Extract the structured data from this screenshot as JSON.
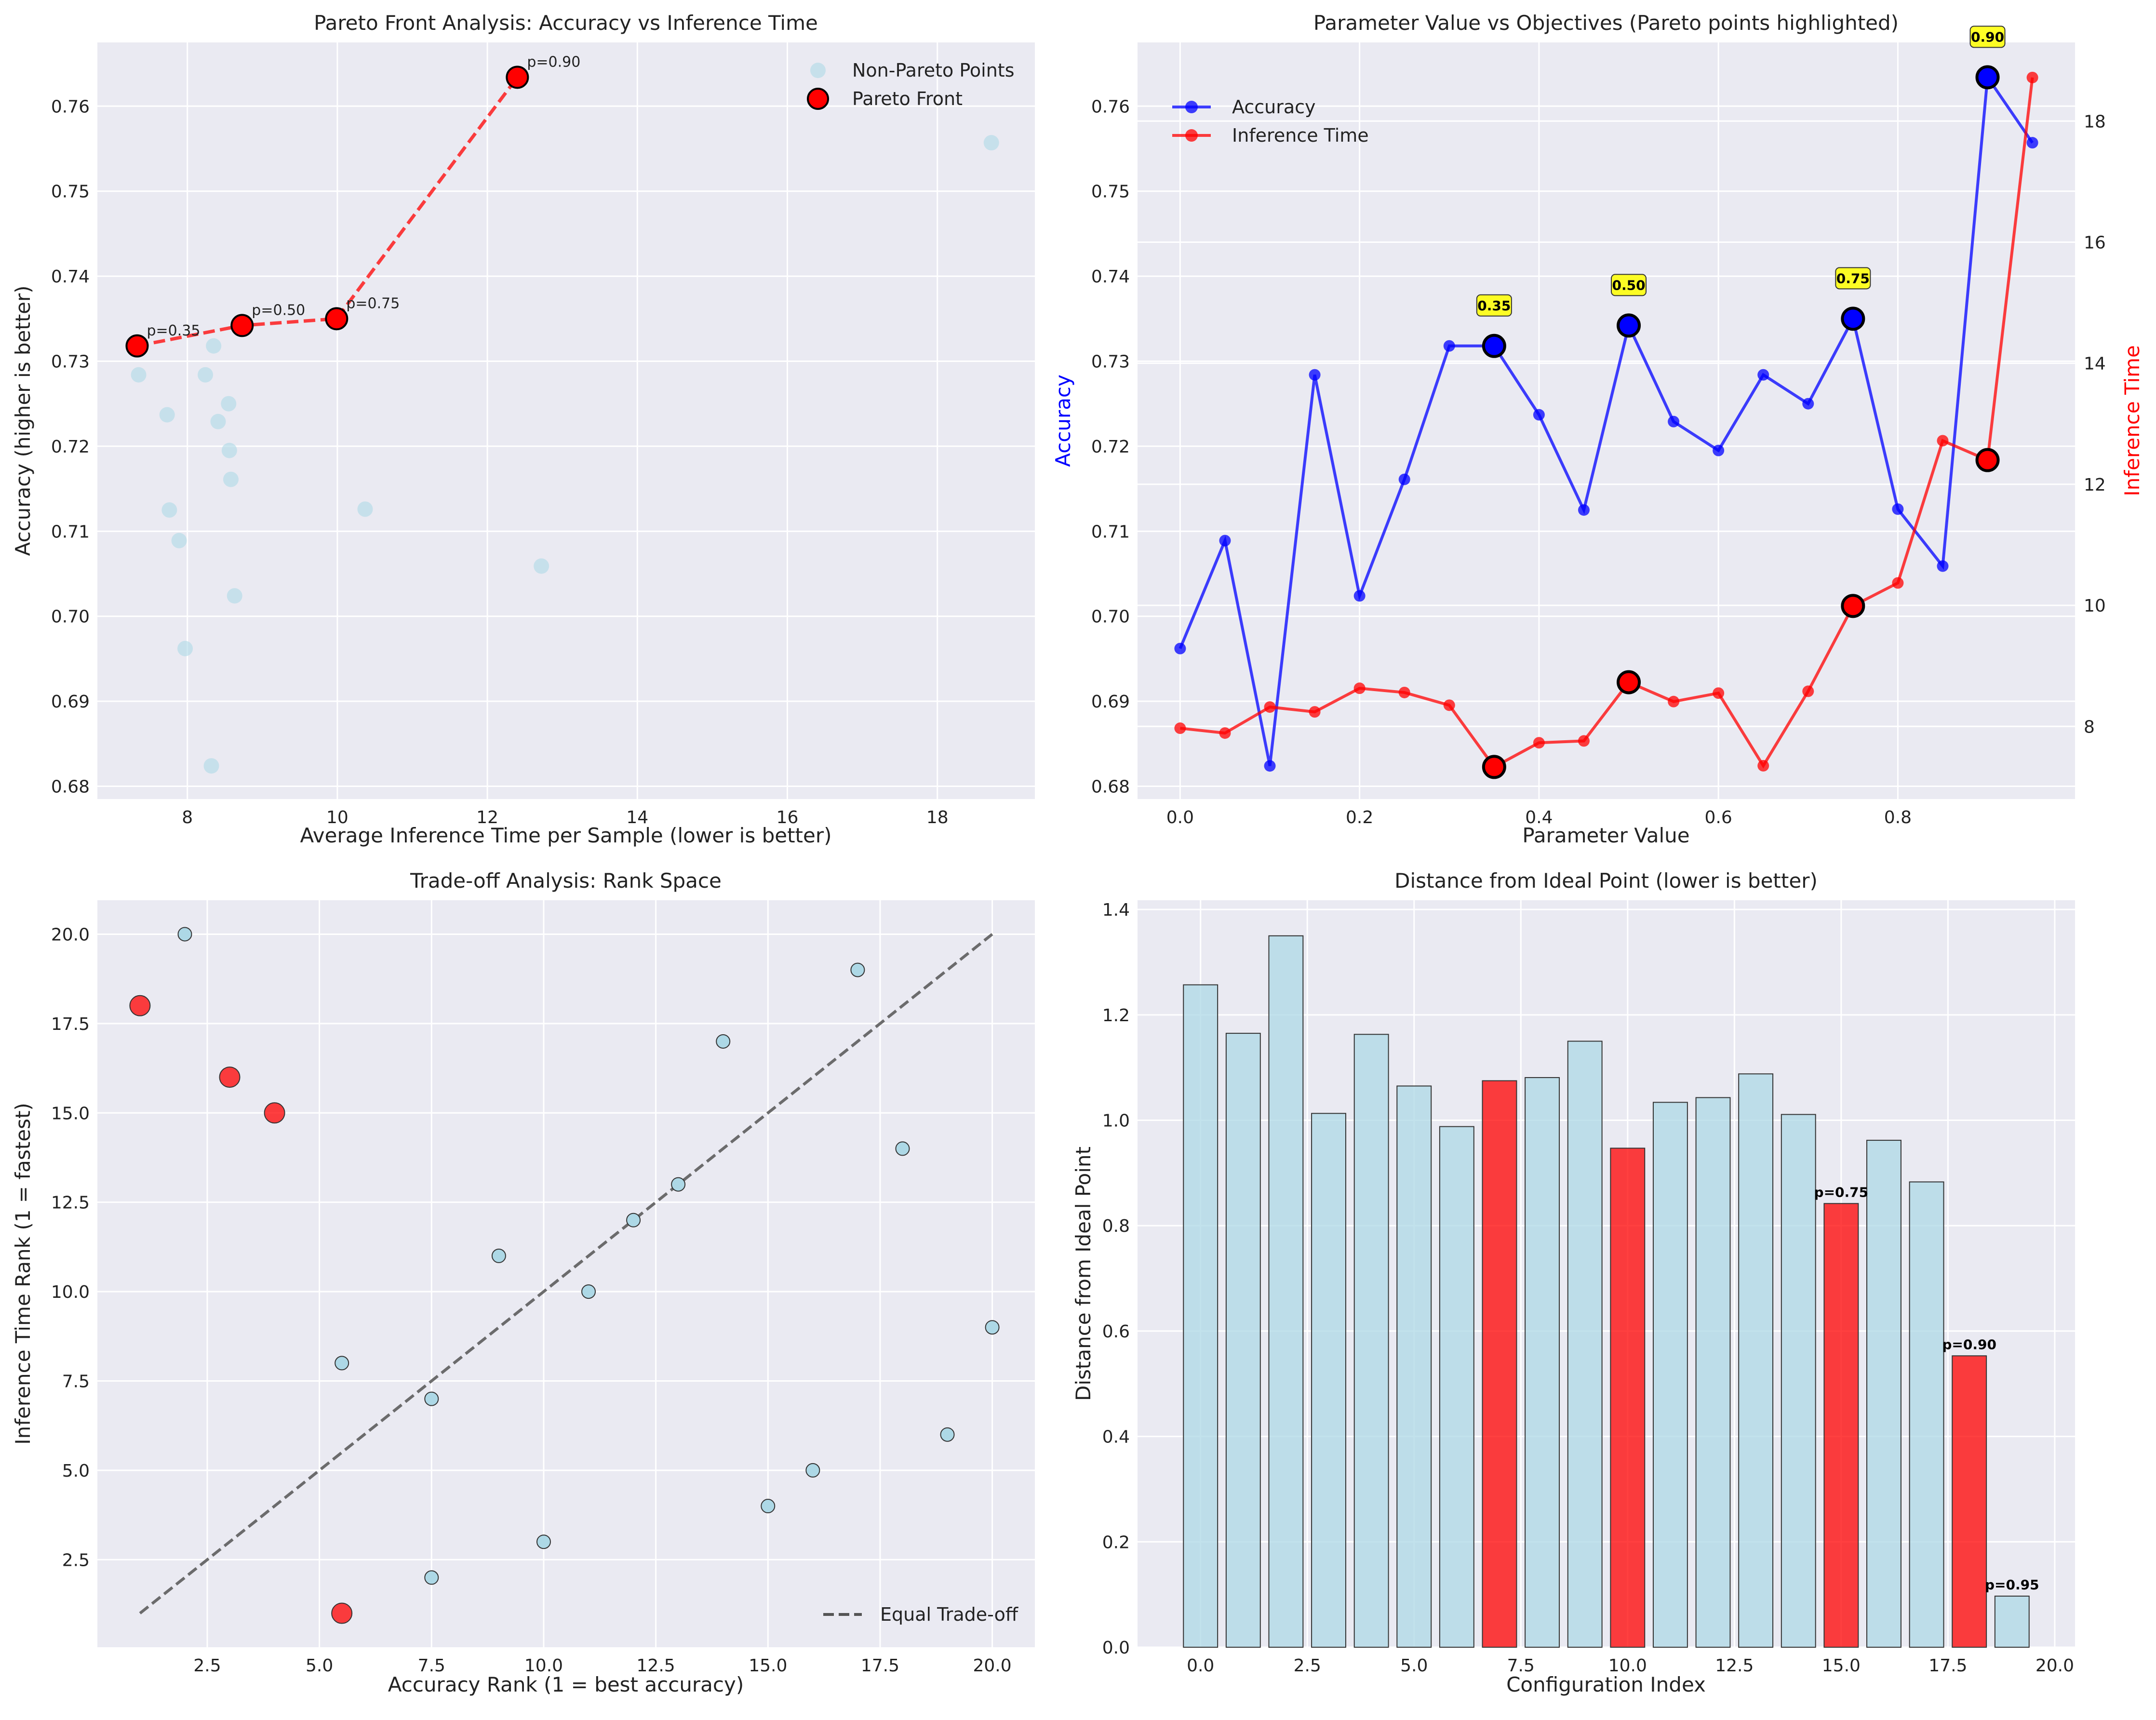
{
  "chart_data": [
    {
      "type": "scatter",
      "title": "Pareto Front Analysis: Accuracy vs Inference Time",
      "xlabel": "Average Inference Time per Sample (lower is better)",
      "ylabel": "Accuracy (higher is better)",
      "xlim": [
        6.8,
        19.3
      ],
      "ylim": [
        0.6785,
        0.7675
      ],
      "xticks": [
        8,
        10,
        12,
        14,
        16,
        18
      ],
      "yticks": [
        0.68,
        0.69,
        0.7,
        0.71,
        0.72,
        0.73,
        0.74,
        0.75,
        0.76
      ],
      "ytick_decimals": 2,
      "grid": true,
      "legend_position": "top-right",
      "series": [
        {
          "name": "Non-Pareto Points",
          "color": "#add8e6",
          "points": [
            [
              7.35,
              0.7284
            ],
            [
              7.73,
              0.7237
            ],
            [
              7.76,
              0.7125
            ],
            [
              7.89,
              0.7089
            ],
            [
              7.97,
              0.6962
            ],
            [
              8.24,
              0.7284
            ],
            [
              8.32,
              0.6824
            ],
            [
              8.35,
              0.7318
            ],
            [
              8.41,
              0.7229
            ],
            [
              8.55,
              0.725
            ],
            [
              8.56,
              0.7195
            ],
            [
              8.58,
              0.7161
            ],
            [
              8.63,
              0.7024
            ],
            [
              10.37,
              0.7126
            ],
            [
              12.72,
              0.7059
            ],
            [
              18.72,
              0.7557
            ]
          ]
        },
        {
          "name": "Pareto Front",
          "color": "#ff0000",
          "points": [
            [
              7.33,
              0.7318
            ],
            [
              8.73,
              0.7342
            ],
            [
              9.99,
              0.735
            ],
            [
              12.4,
              0.7634
            ]
          ],
          "labels": [
            "p=0.35",
            "p=0.50",
            "p=0.75",
            "p=0.90"
          ]
        }
      ]
    },
    {
      "type": "line",
      "title": "Parameter Value vs Objectives (Pareto points highlighted)",
      "xlabel": "Parameter Value",
      "ylabel": "Accuracy",
      "y2label": "Inference Time",
      "xlim": [
        -0.0475,
        0.9975
      ],
      "ylim": [
        0.6785,
        0.7675
      ],
      "y2lim": [
        6.8,
        19.3
      ],
      "xticks": [
        0.0,
        0.2,
        0.4,
        0.6,
        0.8
      ],
      "yticks": [
        0.68,
        0.69,
        0.7,
        0.71,
        0.72,
        0.73,
        0.74,
        0.75,
        0.76
      ],
      "y2ticks": [
        8,
        10,
        12,
        14,
        16,
        18
      ],
      "ytick_decimals": 2,
      "grid": true,
      "legend_position": "top-left",
      "x": [
        0.0,
        0.05,
        0.1,
        0.15,
        0.2,
        0.25,
        0.3,
        0.35,
        0.4,
        0.45,
        0.5,
        0.55,
        0.6,
        0.65,
        0.7,
        0.75,
        0.8,
        0.85,
        0.9,
        0.95
      ],
      "series": [
        {
          "name": "Accuracy",
          "axis": "left",
          "color": "#0000ff",
          "values": [
            0.6962,
            0.7089,
            0.6824,
            0.7284,
            0.7024,
            0.7161,
            0.7318,
            0.7318,
            0.7237,
            0.7125,
            0.7342,
            0.7229,
            0.7195,
            0.7284,
            0.725,
            0.735,
            0.7126,
            0.7059,
            0.7634,
            0.7557
          ]
        },
        {
          "name": "Inference Time",
          "axis": "right",
          "color": "#ff0000",
          "values": [
            7.97,
            7.89,
            8.32,
            8.24,
            8.63,
            8.56,
            8.35,
            7.33,
            7.73,
            7.76,
            8.73,
            8.41,
            8.55,
            7.35,
            8.58,
            9.99,
            10.37,
            12.72,
            12.4,
            18.72
          ]
        }
      ],
      "pareto_indices": [
        7,
        10,
        15,
        18
      ],
      "pareto_labels": [
        "0.35",
        "0.50",
        "0.75",
        "0.90"
      ],
      "annotation_color": "#ffff00"
    },
    {
      "type": "scatter",
      "title": "Trade-off Analysis: Rank Space",
      "xlabel": "Accuracy Rank (1 = best accuracy)",
      "ylabel": "Inference Time Rank (1 = fastest)",
      "xlim": [
        0.05,
        20.95
      ],
      "ylim": [
        0.05,
        20.95
      ],
      "xticks": [
        2.5,
        5.0,
        7.5,
        10.0,
        12.5,
        15.0,
        17.5,
        20.0
      ],
      "yticks": [
        2.5,
        5.0,
        7.5,
        10.0,
        12.5,
        15.0,
        17.5,
        20.0
      ],
      "ytick_decimals": 1,
      "grid": true,
      "legend_position": "bottom-right",
      "series": [
        {
          "name": "",
          "color": "#add8e6",
          "points": [
            [
              20,
              9
            ],
            [
              2,
              20
            ],
            [
              5.5,
              8
            ],
            [
              7.5,
              7
            ],
            [
              16,
              5
            ],
            [
              7.5,
              2
            ],
            [
              10,
              3
            ],
            [
              19,
              6
            ],
            [
              11,
              10
            ],
            [
              9,
              11
            ],
            [
              13,
              13
            ],
            [
              12,
              12
            ],
            [
              15,
              4
            ],
            [
              18,
              14
            ],
            [
              14,
              17
            ],
            [
              17,
              19
            ]
          ]
        },
        {
          "name": "",
          "color": "#ff0000",
          "points": [
            [
              5.5,
              1
            ],
            [
              4,
              15
            ],
            [
              3,
              16
            ],
            [
              1,
              18
            ]
          ]
        }
      ],
      "reference_line": {
        "name": "Equal Trade-off",
        "from": [
          1,
          1
        ],
        "to": [
          20,
          20
        ],
        "color": "#555555"
      }
    },
    {
      "type": "bar",
      "title": "Distance from Ideal Point (lower is better)",
      "xlabel": "Configuration Index",
      "ylabel": "Distance from Ideal Point",
      "xlim": [
        -1.475,
        20.475
      ],
      "ylim": [
        0,
        1.4175
      ],
      "xticks": [
        0.0,
        2.5,
        5.0,
        7.5,
        10.0,
        12.5,
        15.0,
        17.5,
        20.0
      ],
      "yticks": [
        0.0,
        0.2,
        0.4,
        0.6,
        0.8,
        1.0,
        1.2,
        1.4
      ],
      "ytick_decimals": 1,
      "grid": true,
      "categories": [
        0,
        1,
        2,
        3,
        4,
        5,
        6,
        7,
        8,
        9,
        10,
        11,
        12,
        13,
        14,
        15,
        16,
        17,
        18,
        19
      ],
      "values": [
        1.257,
        1.165,
        1.35,
        1.013,
        1.163,
        1.065,
        0.988,
        1.075,
        1.081,
        1.15,
        0.947,
        1.034,
        1.043,
        1.088,
        1.011,
        0.842,
        0.962,
        0.883,
        0.553,
        0.097
      ],
      "highlight_indices": [
        7,
        10,
        15,
        18
      ],
      "colors": {
        "normal": "#add8e6",
        "highlight": "#ff0000"
      },
      "annotations": [
        {
          "index": 15,
          "text": "p=0.75"
        },
        {
          "index": 18,
          "text": "p=0.90"
        },
        {
          "index": 19,
          "text": "p=0.95"
        }
      ]
    }
  ]
}
